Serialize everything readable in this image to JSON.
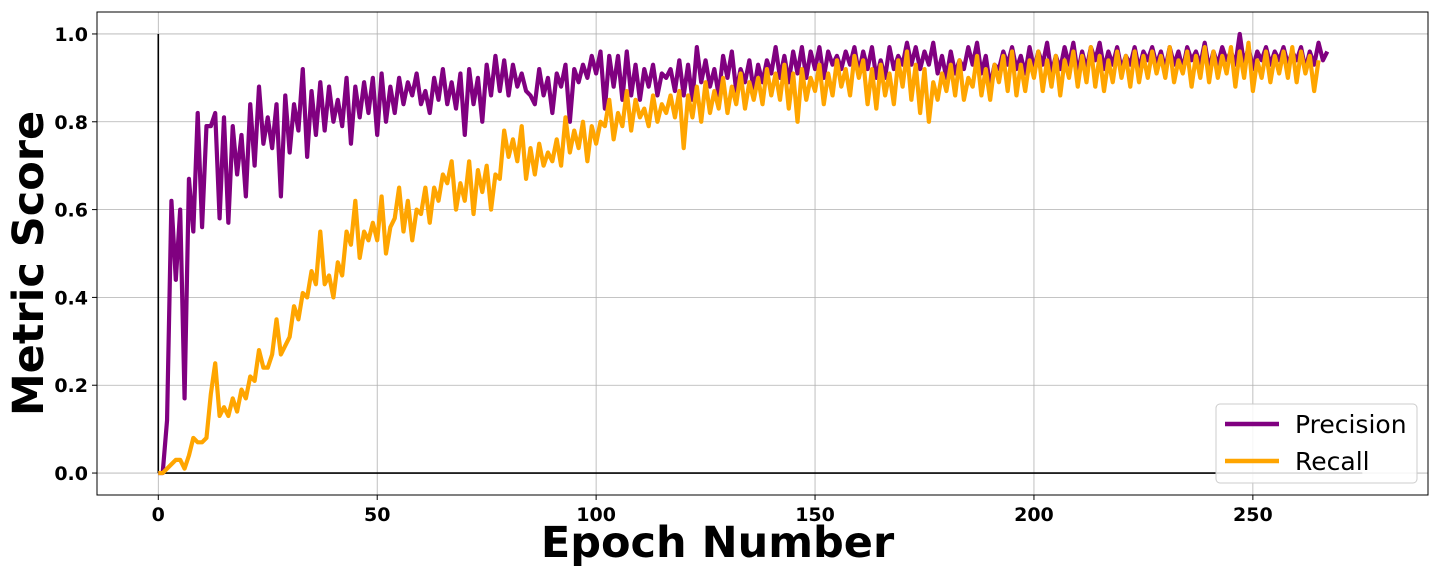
{
  "chart_data": {
    "type": "line",
    "title": "",
    "xlabel": "Epoch Number",
    "ylabel": "Metric Score",
    "xlim": [
      -14,
      290
    ],
    "ylim": [
      -0.05,
      1.05
    ],
    "x_ticks": [
      0,
      50,
      100,
      150,
      200,
      250
    ],
    "x_tick_labels": [
      "0",
      "50",
      "100",
      "150",
      "200",
      "250"
    ],
    "y_ticks": [
      0.0,
      0.2,
      0.4,
      0.6,
      0.8,
      1.0
    ],
    "y_tick_labels": [
      "0.0",
      "0.2",
      "0.4",
      "0.6",
      "0.8",
      "1.0"
    ],
    "grid": true,
    "legend_position": "lower-right",
    "reference_lines": [
      {
        "orientation": "vertical",
        "x": 0,
        "y_from": 0,
        "y_to": 1.0,
        "color": "#000000"
      },
      {
        "orientation": "horizontal",
        "y": 0,
        "x_from": 0,
        "x_to": 275,
        "color": "#000000"
      }
    ],
    "series": [
      {
        "name": "Precision",
        "color": "#800080",
        "x_start": 0,
        "x_step": 1,
        "values": [
          0.0,
          0.0,
          0.12,
          0.62,
          0.44,
          0.6,
          0.17,
          0.67,
          0.55,
          0.82,
          0.56,
          0.79,
          0.79,
          0.82,
          0.58,
          0.81,
          0.57,
          0.79,
          0.68,
          0.77,
          0.63,
          0.84,
          0.7,
          0.88,
          0.75,
          0.81,
          0.74,
          0.84,
          0.63,
          0.86,
          0.73,
          0.84,
          0.78,
          0.92,
          0.72,
          0.87,
          0.77,
          0.89,
          0.78,
          0.88,
          0.8,
          0.85,
          0.79,
          0.9,
          0.75,
          0.88,
          0.81,
          0.89,
          0.82,
          0.9,
          0.77,
          0.91,
          0.8,
          0.88,
          0.82,
          0.9,
          0.84,
          0.89,
          0.86,
          0.91,
          0.84,
          0.87,
          0.82,
          0.9,
          0.85,
          0.92,
          0.84,
          0.89,
          0.83,
          0.91,
          0.77,
          0.92,
          0.84,
          0.9,
          0.8,
          0.93,
          0.86,
          0.95,
          0.87,
          0.94,
          0.86,
          0.93,
          0.88,
          0.91,
          0.87,
          0.86,
          0.84,
          0.92,
          0.86,
          0.9,
          0.82,
          0.91,
          0.88,
          0.93,
          0.8,
          0.92,
          0.89,
          0.93,
          0.9,
          0.95,
          0.91,
          0.96,
          0.83,
          0.95,
          0.88,
          0.95,
          0.85,
          0.96,
          0.86,
          0.93,
          0.85,
          0.92,
          0.88,
          0.93,
          0.86,
          0.91,
          0.9,
          0.92,
          0.87,
          0.94,
          0.86,
          0.93,
          0.85,
          0.97,
          0.89,
          0.94,
          0.88,
          0.92,
          0.86,
          0.95,
          0.9,
          0.96,
          0.87,
          0.92,
          0.89,
          0.94,
          0.87,
          0.93,
          0.89,
          0.94,
          0.91,
          0.97,
          0.9,
          0.95,
          0.89,
          0.96,
          0.91,
          0.97,
          0.9,
          0.96,
          0.92,
          0.97,
          0.9,
          0.96,
          0.93,
          0.95,
          0.92,
          0.96,
          0.93,
          0.97,
          0.91,
          0.96,
          0.92,
          0.97,
          0.9,
          0.94,
          0.9,
          0.97,
          0.92,
          0.95,
          0.93,
          0.98,
          0.93,
          0.97,
          0.92,
          0.96,
          0.93,
          0.98,
          0.91,
          0.95,
          0.9,
          0.96,
          0.91,
          0.94,
          0.92,
          0.97,
          0.93,
          0.98,
          0.91,
          0.95,
          0.88,
          0.93,
          0.92,
          0.96,
          0.93,
          0.97,
          0.92,
          0.95,
          0.91,
          0.97,
          0.92,
          0.96,
          0.93,
          0.98,
          0.91,
          0.95,
          0.92,
          0.97,
          0.93,
          0.98,
          0.91,
          0.96,
          0.92,
          0.97,
          0.94,
          0.98,
          0.92,
          0.96,
          0.93,
          0.97,
          0.92,
          0.95,
          0.93,
          0.97,
          0.92,
          0.96,
          0.94,
          0.97,
          0.93,
          0.96,
          0.92,
          0.97,
          0.93,
          0.96,
          0.92,
          0.97,
          0.94,
          0.96,
          0.93,
          0.98,
          0.92,
          0.96,
          0.93,
          0.97,
          0.94,
          0.96,
          0.93,
          1.0,
          0.93,
          0.97,
          0.92,
          0.96,
          0.94,
          0.97,
          0.93,
          0.96,
          0.94,
          0.97,
          0.93,
          0.96,
          0.94,
          0.97,
          0.92,
          0.96,
          0.93,
          0.98,
          0.94,
          0.96
        ]
      },
      {
        "name": "Recall",
        "color": "#FFA500",
        "x_start": 0,
        "x_step": 1,
        "values": [
          0.0,
          0.0,
          0.01,
          0.02,
          0.03,
          0.03,
          0.01,
          0.04,
          0.08,
          0.07,
          0.07,
          0.08,
          0.18,
          0.25,
          0.13,
          0.15,
          0.13,
          0.17,
          0.14,
          0.19,
          0.17,
          0.22,
          0.21,
          0.28,
          0.24,
          0.24,
          0.27,
          0.35,
          0.27,
          0.29,
          0.31,
          0.38,
          0.35,
          0.41,
          0.4,
          0.46,
          0.43,
          0.55,
          0.43,
          0.45,
          0.4,
          0.48,
          0.45,
          0.55,
          0.52,
          0.62,
          0.49,
          0.55,
          0.53,
          0.57,
          0.53,
          0.63,
          0.5,
          0.56,
          0.58,
          0.65,
          0.55,
          0.62,
          0.53,
          0.6,
          0.59,
          0.65,
          0.57,
          0.65,
          0.62,
          0.68,
          0.66,
          0.71,
          0.6,
          0.66,
          0.62,
          0.71,
          0.59,
          0.69,
          0.64,
          0.7,
          0.6,
          0.68,
          0.67,
          0.78,
          0.72,
          0.76,
          0.71,
          0.79,
          0.67,
          0.74,
          0.68,
          0.75,
          0.7,
          0.73,
          0.71,
          0.76,
          0.7,
          0.81,
          0.73,
          0.78,
          0.74,
          0.8,
          0.71,
          0.79,
          0.75,
          0.8,
          0.79,
          0.85,
          0.76,
          0.82,
          0.79,
          0.87,
          0.78,
          0.85,
          0.81,
          0.83,
          0.79,
          0.86,
          0.8,
          0.84,
          0.82,
          0.86,
          0.81,
          0.87,
          0.74,
          0.86,
          0.81,
          0.88,
          0.8,
          0.89,
          0.82,
          0.87,
          0.83,
          0.9,
          0.82,
          0.88,
          0.84,
          0.91,
          0.83,
          0.89,
          0.85,
          0.9,
          0.84,
          0.92,
          0.86,
          0.91,
          0.85,
          0.93,
          0.83,
          0.91,
          0.8,
          0.92,
          0.85,
          0.9,
          0.87,
          0.93,
          0.84,
          0.91,
          0.86,
          0.94,
          0.88,
          0.92,
          0.86,
          0.95,
          0.9,
          0.94,
          0.84,
          0.92,
          0.83,
          0.93,
          0.86,
          0.91,
          0.84,
          0.94,
          0.88,
          0.96,
          0.85,
          0.93,
          0.82,
          0.92,
          0.8,
          0.89,
          0.85,
          0.91,
          0.87,
          0.93,
          0.86,
          0.94,
          0.85,
          0.9,
          0.88,
          0.95,
          0.86,
          0.92,
          0.85,
          0.93,
          0.89,
          0.95,
          0.87,
          0.96,
          0.86,
          0.93,
          0.87,
          0.94,
          0.9,
          0.96,
          0.87,
          0.94,
          0.88,
          0.95,
          0.86,
          0.94,
          0.9,
          0.96,
          0.88,
          0.95,
          0.89,
          0.97,
          0.88,
          0.95,
          0.87,
          0.94,
          0.89,
          0.96,
          0.9,
          0.95,
          0.88,
          0.96,
          0.89,
          0.95,
          0.9,
          0.96,
          0.91,
          0.95,
          0.9,
          0.97,
          0.89,
          0.94,
          0.91,
          0.96,
          0.88,
          0.95,
          0.9,
          0.97,
          0.89,
          0.96,
          0.9,
          0.95,
          0.91,
          0.97,
          0.88,
          0.96,
          0.9,
          0.98,
          0.87,
          0.94,
          0.9,
          0.96,
          0.89,
          0.95,
          0.91,
          0.96,
          0.9,
          0.97,
          0.89,
          0.96,
          0.91,
          0.95,
          0.87,
          0.94
        ]
      }
    ]
  }
}
